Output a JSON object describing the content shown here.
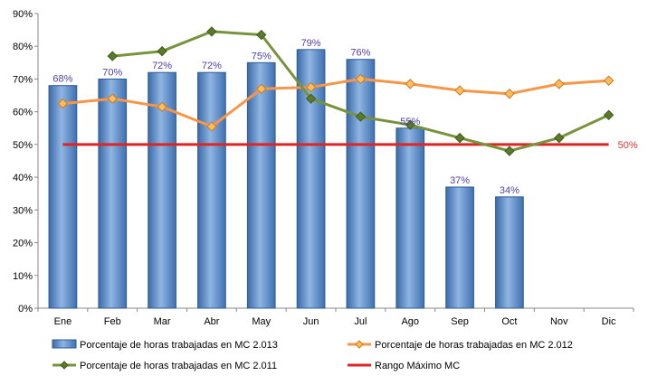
{
  "chart_data": {
    "type": "bar",
    "categories": [
      "Ene",
      "Feb",
      "Mar",
      "Abr",
      "May",
      "Jun",
      "Jul",
      "Ago",
      "Sep",
      "Oct",
      "Nov",
      "Dic"
    ],
    "ylim": [
      0,
      90
    ],
    "yticks": [
      "0%",
      "10%",
      "20%",
      "30%",
      "40%",
      "50%",
      "60%",
      "70%",
      "80%",
      "90%"
    ],
    "grid": false,
    "legend_position": "bottom",
    "series": [
      {
        "name": "Porcentaje de horas trabajadas en MC 2.013",
        "type": "bar",
        "color": "#4f81bd",
        "values": [
          68,
          70,
          72,
          72,
          75,
          79,
          76,
          55,
          37,
          34,
          null,
          null
        ],
        "labels": [
          "68%",
          "70%",
          "72%",
          "72%",
          "75%",
          "79%",
          "76%",
          "55%",
          "37%",
          "34%",
          "",
          ""
        ]
      },
      {
        "name": "Porcentaje de horas trabajadas en MC 2.012",
        "type": "line",
        "color": "#f79646",
        "values": [
          62.5,
          64,
          61.5,
          55.5,
          67,
          67.5,
          70,
          68.5,
          66.5,
          65.5,
          68.5,
          69.5
        ]
      },
      {
        "name": "Porcentaje de horas trabajadas en MC 2.011",
        "type": "line",
        "color": "#77933c",
        "values": [
          null,
          77,
          78.5,
          84.5,
          83.5,
          64,
          58.5,
          56,
          52,
          48,
          52,
          59
        ]
      },
      {
        "name": "Rango Máximo MC",
        "type": "line",
        "color": "#e02424",
        "values": [
          50,
          50,
          50,
          50,
          50,
          50,
          50,
          50,
          50,
          50,
          50,
          50
        ],
        "end_label": "50%"
      }
    ]
  }
}
